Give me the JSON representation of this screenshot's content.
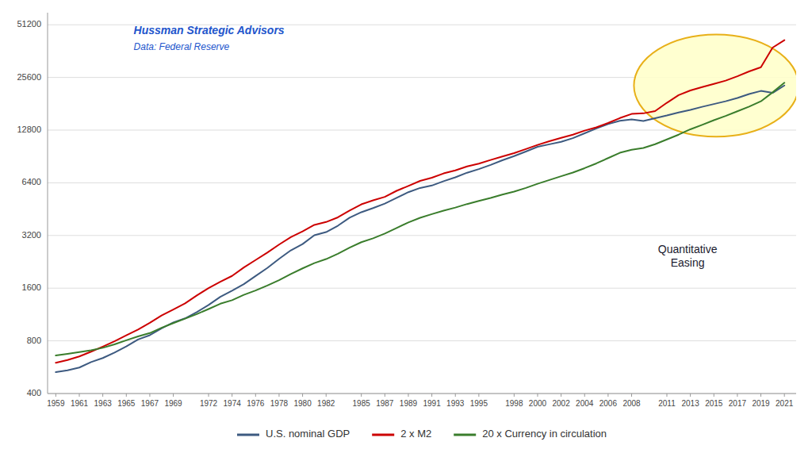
{
  "chart_data": {
    "type": "line",
    "title": "Hussman Strategic Advisors",
    "subtitle": "Data: Federal Reserve",
    "annotation": "Quantitative\nEasing",
    "x": [
      1959,
      1960,
      1961,
      1962,
      1963,
      1964,
      1965,
      1966,
      1967,
      1968,
      1969,
      1970,
      1971,
      1972,
      1973,
      1974,
      1975,
      1976,
      1977,
      1978,
      1979,
      1980,
      1981,
      1982,
      1983,
      1984,
      1985,
      1986,
      1987,
      1988,
      1989,
      1990,
      1991,
      1992,
      1993,
      1994,
      1995,
      1996,
      1997,
      1998,
      1999,
      2000,
      2001,
      2002,
      2003,
      2004,
      2005,
      2006,
      2007,
      2008,
      2009,
      2010,
      2011,
      2012,
      2013,
      2014,
      2015,
      2016,
      2017,
      2018,
      2019,
      2020,
      2021
    ],
    "series": [
      {
        "name": "U.S. nominal GDP",
        "color": "#3d5a80",
        "values": [
          530,
          543,
          563,
          605,
          638,
          686,
          743,
          815,
          862,
          943,
          1019,
          1075,
          1167,
          1282,
          1428,
          1549,
          1688,
          1877,
          2086,
          2352,
          2631,
          2858,
          3211,
          3345,
          3638,
          4041,
          4347,
          4590,
          4870,
          5253,
          5658,
          5980,
          6174,
          6539,
          6879,
          7309,
          7664,
          8100,
          8609,
          9089,
          9661,
          10285,
          10622,
          10978,
          11511,
          12275,
          13094,
          13856,
          14478,
          14719,
          14419,
          14964,
          15518,
          16155,
          16692,
          17393,
          18037,
          18715,
          19519,
          20580,
          21433,
          20893,
          23021
        ]
      },
      {
        "name": "2 x M2",
        "color": "#cc0000",
        "values": [
          600,
          622,
          652,
          694,
          742,
          796,
          860,
          928,
          1014,
          1118,
          1208,
          1310,
          1454,
          1600,
          1742,
          1880,
          2100,
          2316,
          2554,
          2840,
          3130,
          3380,
          3680,
          3820,
          4060,
          4440,
          4820,
          5080,
          5320,
          5760,
          6140,
          6560,
          6840,
          7240,
          7540,
          7940,
          8240,
          8640,
          9040,
          9460,
          9980,
          10540,
          11060,
          11560,
          12060,
          12720,
          13280,
          14060,
          15000,
          15840,
          15960,
          16440,
          18340,
          20280,
          21560,
          22540,
          23520,
          24540,
          26000,
          27700,
          29260,
          37900,
          41800
        ]
      },
      {
        "name": "20 x Currency in circulation",
        "color": "#3a7d2c",
        "values": [
          660,
          674,
          690,
          706,
          730,
          764,
          806,
          848,
          886,
          950,
          1010,
          1072,
          1138,
          1216,
          1304,
          1366,
          1466,
          1552,
          1656,
          1778,
          1928,
          2076,
          2224,
          2346,
          2516,
          2726,
          2930,
          3084,
          3280,
          3530,
          3800,
          4040,
          4240,
          4440,
          4620,
          4840,
          5040,
          5240,
          5480,
          5700,
          5980,
          6320,
          6640,
          6980,
          7320,
          7760,
          8260,
          8860,
          9500,
          9880,
          10120,
          10640,
          11320,
          12060,
          12940,
          13720,
          14580,
          15420,
          16400,
          17440,
          18700,
          21040,
          23860
        ]
      }
    ],
    "xlim": [
      1958.3,
      2022.0
    ],
    "xticks": [
      1959,
      1961,
      1963,
      1965,
      1967,
      1969,
      1972,
      1974,
      1976,
      1978,
      1980,
      1982,
      1985,
      1987,
      1989,
      1991,
      1993,
      1995,
      1998,
      2000,
      2002,
      2004,
      2006,
      2008,
      2011,
      2013,
      2015,
      2017,
      2019,
      2021
    ],
    "ylim": [
      400,
      60000
    ],
    "yticks": [
      400,
      800,
      1600,
      3200,
      6400,
      12800,
      25600,
      51200
    ],
    "log": "y",
    "grid": true,
    "legend": "bottom"
  }
}
